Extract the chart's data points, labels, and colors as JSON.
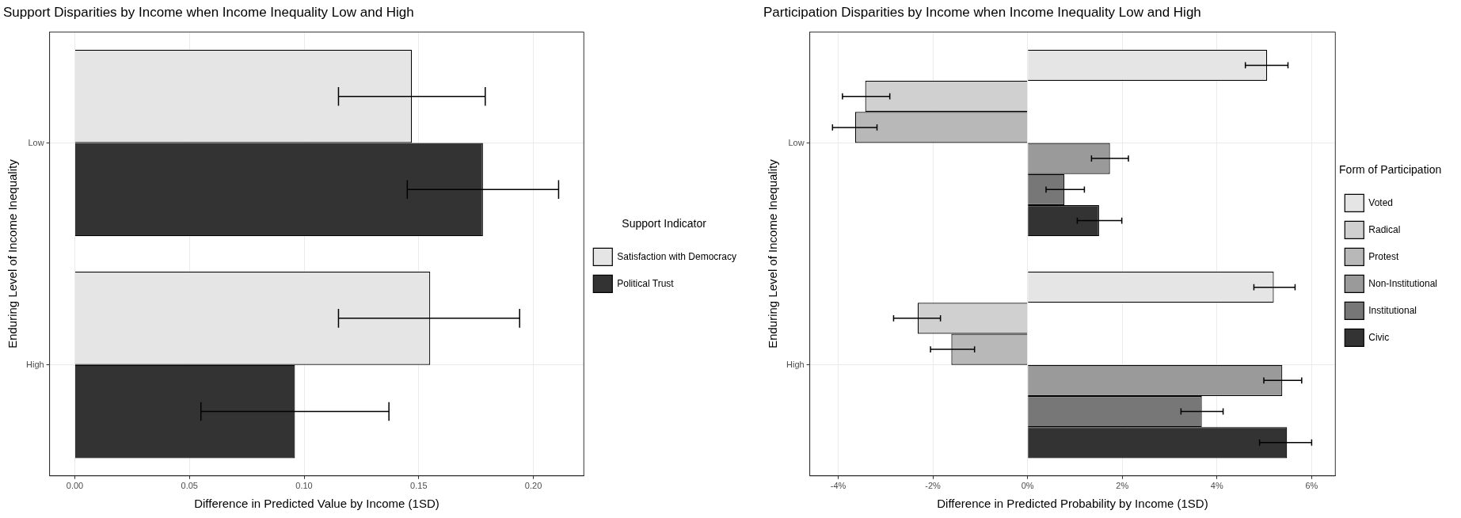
{
  "chart_data": [
    {
      "type": "bar",
      "orientation": "horizontal",
      "title": "Support Disparities by Income when Income Inequality Low and High",
      "xlabel": "Difference in Predicted Value by Income (1SD)",
      "ylabel": "Enduring Level of Income Inequality",
      "legend_title": "Support Indicator",
      "legend": "right",
      "grid": true,
      "categories": [
        "Low",
        "High"
      ],
      "xlim": [
        -0.011,
        0.222
      ],
      "xticks": [
        {
          "value": 0,
          "label": "0.00"
        },
        {
          "value": 0.05,
          "label": "0.05"
        },
        {
          "value": 0.1,
          "label": "0.10"
        },
        {
          "value": 0.15,
          "label": "0.15"
        },
        {
          "value": 0.2,
          "label": "0.20"
        }
      ],
      "series": [
        {
          "name": "Satisfaction with Democracy",
          "color": "#e5e5e5",
          "values": [
            0.147,
            0.155
          ],
          "errors": [
            [
              0.115,
              0.179
            ],
            [
              0.115,
              0.194
            ]
          ]
        },
        {
          "name": "Political Trust",
          "color": "#333333",
          "values": [
            0.178,
            0.096
          ],
          "errors": [
            [
              0.145,
              0.211
            ],
            [
              0.055,
              0.137
            ]
          ]
        }
      ]
    },
    {
      "type": "bar",
      "orientation": "horizontal",
      "title": "Participation Disparities by Income when Income Inequality Low and High",
      "xlabel": "Difference in Predicted Probability by Income (1SD)",
      "ylabel": "Enduring Level of Income Inequality",
      "legend_title": "Form of Participation",
      "legend": "right",
      "grid": true,
      "categories": [
        "Low",
        "High"
      ],
      "xlim": [
        -4.6,
        6.5
      ],
      "xticks": [
        {
          "value": -4,
          "label": "-4%"
        },
        {
          "value": -2,
          "label": "-2%"
        },
        {
          "value": 0,
          "label": "0%"
        },
        {
          "value": 2,
          "label": "2%"
        },
        {
          "value": 4,
          "label": "4%"
        },
        {
          "value": 6,
          "label": "6%"
        }
      ],
      "series": [
        {
          "name": "Voted",
          "color": "#e5e5e5",
          "values": [
            5.06,
            5.2
          ],
          "errors": [
            [
              4.6,
              5.5
            ],
            [
              4.78,
              5.65
            ]
          ]
        },
        {
          "name": "Radical",
          "color": "#d0d0d0",
          "values": [
            -3.43,
            -2.32
          ],
          "errors": [
            [
              -3.91,
              -2.91
            ],
            [
              -2.83,
              -1.84
            ]
          ]
        },
        {
          "name": "Protest",
          "color": "#b8b8b8",
          "values": [
            -3.64,
            -1.61
          ],
          "errors": [
            [
              -4.12,
              -3.18
            ],
            [
              -2.05,
              -1.12
            ]
          ]
        },
        {
          "name": "Non-Institutional",
          "color": "#9a9a9a",
          "values": [
            1.74,
            5.38
          ],
          "errors": [
            [
              1.35,
              2.13
            ],
            [
              4.99,
              5.79
            ]
          ]
        },
        {
          "name": "Institutional",
          "color": "#777777",
          "values": [
            0.78,
            3.68
          ],
          "errors": [
            [
              0.39,
              1.2
            ],
            [
              3.24,
              4.13
            ]
          ]
        },
        {
          "name": "Civic",
          "color": "#333333",
          "values": [
            1.51,
            5.48
          ],
          "errors": [
            [
              1.05,
              1.99
            ],
            [
              4.9,
              6.0
            ]
          ]
        }
      ]
    }
  ]
}
